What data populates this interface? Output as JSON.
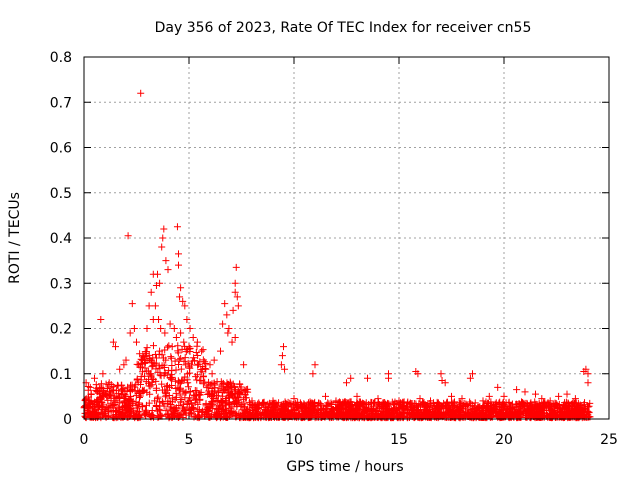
{
  "chart_data": {
    "type": "scatter",
    "title": "Day 356 of 2023, Rate Of TEC Index for receiver cn55",
    "xlabel": "GPS time / hours",
    "ylabel": "ROTI / TECUs",
    "xlim": [
      0,
      25
    ],
    "ylim": [
      0,
      0.8
    ],
    "x_ticks": [
      "0",
      "5",
      "10",
      "15",
      "20",
      "25"
    ],
    "x_tick_values": [
      0,
      5,
      10,
      15,
      20,
      25
    ],
    "y_ticks": [
      "0",
      "0.1",
      "0.2",
      "0.3",
      "0.4",
      "0.5",
      "0.6",
      "0.7",
      "0.8"
    ],
    "y_tick_values": [
      0,
      0.1,
      0.2,
      0.3,
      0.4,
      0.5,
      0.6,
      0.7,
      0.8
    ],
    "grid": true,
    "marker": "+",
    "marker_color": "#ff0000",
    "series": [
      {
        "name": "ROTI",
        "points": [
          [
            2.7,
            0.72
          ],
          [
            4.45,
            0.425
          ],
          [
            2.1,
            0.405
          ],
          [
            3.8,
            0.42
          ],
          [
            3.75,
            0.4
          ],
          [
            3.7,
            0.38
          ],
          [
            4.5,
            0.365
          ],
          [
            4.5,
            0.34
          ],
          [
            3.9,
            0.35
          ],
          [
            4.0,
            0.33
          ],
          [
            3.3,
            0.32
          ],
          [
            3.5,
            0.32
          ],
          [
            3.6,
            0.3
          ],
          [
            3.45,
            0.295
          ],
          [
            4.6,
            0.29
          ],
          [
            4.55,
            0.27
          ],
          [
            4.7,
            0.26
          ],
          [
            3.4,
            0.25
          ],
          [
            3.2,
            0.28
          ],
          [
            3.1,
            0.25
          ],
          [
            2.3,
            0.255
          ],
          [
            2.4,
            0.2
          ],
          [
            2.2,
            0.19
          ],
          [
            2.5,
            0.17
          ],
          [
            3.0,
            0.2
          ],
          [
            3.3,
            0.22
          ],
          [
            3.55,
            0.22
          ],
          [
            3.65,
            0.2
          ],
          [
            3.85,
            0.19
          ],
          [
            4.1,
            0.21
          ],
          [
            4.3,
            0.2
          ],
          [
            4.8,
            0.25
          ],
          [
            4.9,
            0.22
          ],
          [
            5.05,
            0.2
          ],
          [
            5.2,
            0.18
          ],
          [
            5.4,
            0.17
          ],
          [
            5.6,
            0.15
          ],
          [
            6.0,
            0.12
          ],
          [
            6.2,
            0.13
          ],
          [
            0.8,
            0.22
          ],
          [
            1.4,
            0.17
          ],
          [
            1.5,
            0.16
          ],
          [
            1.7,
            0.11
          ],
          [
            1.9,
            0.12
          ],
          [
            2.0,
            0.13
          ],
          [
            6.7,
            0.255
          ],
          [
            6.8,
            0.23
          ],
          [
            6.6,
            0.21
          ],
          [
            6.9,
            0.2
          ],
          [
            7.1,
            0.24
          ],
          [
            7.2,
            0.3
          ],
          [
            7.25,
            0.335
          ],
          [
            7.2,
            0.28
          ],
          [
            7.3,
            0.27
          ],
          [
            7.35,
            0.25
          ],
          [
            6.85,
            0.19
          ],
          [
            7.05,
            0.17
          ],
          [
            7.2,
            0.18
          ],
          [
            6.5,
            0.15
          ],
          [
            7.6,
            0.12
          ],
          [
            9.5,
            0.16
          ],
          [
            9.45,
            0.14
          ],
          [
            9.4,
            0.12
          ],
          [
            9.55,
            0.11
          ],
          [
            11.0,
            0.12
          ],
          [
            10.9,
            0.1
          ],
          [
            12.5,
            0.08
          ],
          [
            12.7,
            0.09
          ],
          [
            13.5,
            0.09
          ],
          [
            14.5,
            0.1
          ],
          [
            14.5,
            0.09
          ],
          [
            15.8,
            0.105
          ],
          [
            15.9,
            0.1
          ],
          [
            17.0,
            0.1
          ],
          [
            17.05,
            0.085
          ],
          [
            17.2,
            0.08
          ],
          [
            18.5,
            0.1
          ],
          [
            18.4,
            0.09
          ],
          [
            19.3,
            0.05
          ],
          [
            19.7,
            0.07
          ],
          [
            20.6,
            0.065
          ],
          [
            21.0,
            0.06
          ],
          [
            21.5,
            0.055
          ],
          [
            22.6,
            0.05
          ],
          [
            23.0,
            0.055
          ],
          [
            23.8,
            0.105
          ],
          [
            23.9,
            0.11
          ],
          [
            24.0,
            0.1
          ],
          [
            0.1,
            0.08
          ],
          [
            0.3,
            0.07
          ],
          [
            0.5,
            0.09
          ],
          [
            0.9,
            0.1
          ],
          [
            1.2,
            0.08
          ],
          [
            3.6,
            0.15
          ],
          [
            4.2,
            0.16
          ],
          [
            4.4,
            0.18
          ],
          [
            4.6,
            0.19
          ],
          [
            4.75,
            0.17
          ],
          [
            5.0,
            0.16
          ],
          [
            2.6,
            0.12
          ],
          [
            2.8,
            0.14
          ],
          [
            3.0,
            0.13
          ],
          [
            5.8,
            0.11
          ],
          [
            6.1,
            0.1
          ],
          [
            8.0,
            0.04
          ],
          [
            8.5,
            0.035
          ],
          [
            9.0,
            0.04
          ],
          [
            10.0,
            0.045
          ],
          [
            11.5,
            0.05
          ],
          [
            12.0,
            0.04
          ],
          [
            13.0,
            0.05
          ],
          [
            14.0,
            0.045
          ],
          [
            15.0,
            0.04
          ],
          [
            16.0,
            0.045
          ],
          [
            16.5,
            0.04
          ],
          [
            17.5,
            0.05
          ],
          [
            18.0,
            0.045
          ],
          [
            19.0,
            0.04
          ],
          [
            20.0,
            0.05
          ],
          [
            21.8,
            0.045
          ],
          [
            22.2,
            0.04
          ],
          [
            23.4,
            0.045
          ],
          [
            24.0,
            0.08
          ]
        ]
      }
    ]
  }
}
